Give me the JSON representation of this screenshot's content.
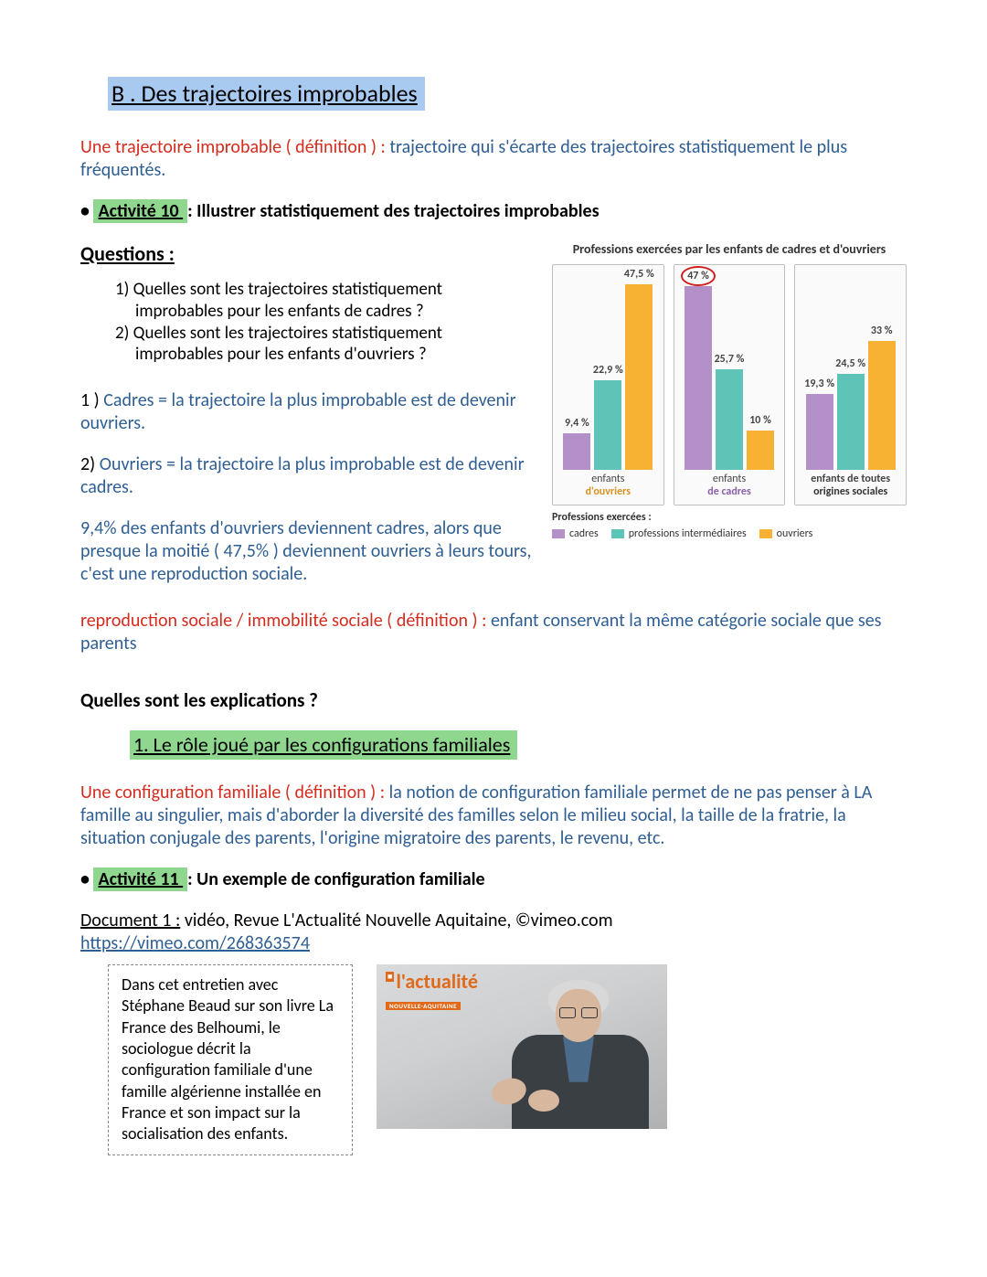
{
  "title": " B . Des trajectoires improbables ",
  "def1_label": "Une trajectoire improbable ( définition ) :",
  "def1_body": " trajectoire qui s'écarte des trajectoires statistiquement le plus fréquentés.",
  "act10_label": " Activité 10  ",
  "act10_body": ": Illustrer statistiquement des trajectoires improbables",
  "questions_h": "Questions  :",
  "q1": "1) Quelles sont les trajectoires statistiquement improbables pour les enfants de cadres ?",
  "q2": "2) Quelles sont les trajectoires statistiquement improbables pour les enfants d'ouvriers ?",
  "a1_pre": "1 ) ",
  "a1_body": "Cadres = la trajectoire la plus improbable est de devenir ouvriers.",
  "a2_pre": "2) ",
  "a2_body": "Ouvriers = la trajectoire la plus improbable est de devenir cadres.",
  "stat": "9,4% des enfants d'ouvriers deviennent cadres, alors que presque la moitié ( 47,5% ) deviennent ouvriers à leurs tours, c'est une reproduction sociale.",
  "def2_label": "reproduction sociale / immobilité sociale  ( définition ) :",
  "def2_body": " enfant conservant la même catégorie sociale que ses parents",
  "explain_h": "Quelles sont les explications ?",
  "sub_h": " 1. Le rôle joué par les configurations familiales ",
  "def3_label": "Une configuration familiale ( définition ) :",
  "def3_body": " la notion de configuration familiale permet de ne pas penser à LA famille au singulier, mais d'aborder la diversité des familles selon le milieu social, la taille de la fratrie, la situation conjugale des parents, l'origine migratoire des parents, le revenu, etc.",
  "act11_label": " Activité 11  ",
  "act11_body": ": Un exemple de configuration familiale",
  "doc1_pre": "Document 1 :",
  "doc1_body": " vidéo, Revue L'Actualité Nouvelle Aquitaine, ©vimeo.com",
  "doc1_link": "https://vimeo.com/268363574",
  "caption": "Dans cet entretien avec Stéphane Beaud sur son livre La France des Belhoumi, le sociologue décrit la configuration familiale d'une famille algérienne installée en France et son impact sur la socialisation des enfants.",
  "video_logo_main": "l'actualité",
  "video_logo_sub": "NOUVELLE-AQUITAINE",
  "chart": {
    "title": "Professions exercées par les enfants de cadres et d'ouvriers",
    "colors": {
      "cadres": "#b490c8",
      "inter": "#5fc4b8",
      "ouvriers": "#f7b233",
      "border": "#bfbfbf",
      "bg": "#fafafa"
    },
    "max": 50,
    "groups": [
      {
        "label_l1": "enfants",
        "label_l2": "d'ouvriers",
        "label_color": "#d89020",
        "bars": [
          {
            "series": "cadres",
            "value": 9.4,
            "label": "9,4 %"
          },
          {
            "series": "inter",
            "value": 22.9,
            "label": "22,9 %"
          },
          {
            "series": "ouvriers",
            "value": 47.5,
            "label": "47,5 %"
          }
        ]
      },
      {
        "label_l1": "enfants",
        "label_l2": "de cadres",
        "label_color": "#8a5fa8",
        "bars": [
          {
            "series": "cadres",
            "value": 47,
            "label": "47 %",
            "circled": true
          },
          {
            "series": "inter",
            "value": 25.7,
            "label": "25,7 %"
          },
          {
            "series": "ouvriers",
            "value": 10,
            "label": "10 %"
          }
        ]
      },
      {
        "label_l1": "enfants de toutes",
        "label_l2": "origines sociales",
        "label_color": "#333",
        "bold": true,
        "bars": [
          {
            "series": "cadres",
            "value": 19.3,
            "label": "19,3 %"
          },
          {
            "series": "inter",
            "value": 24.5,
            "label": "24,5 %"
          },
          {
            "series": "ouvriers",
            "value": 33,
            "label": "33 %"
          }
        ]
      }
    ],
    "legend_title": "Professions exercées :",
    "legend": [
      {
        "series": "cadres",
        "label": "cadres"
      },
      {
        "series": "inter",
        "label": "professions intermédiaires"
      },
      {
        "series": "ouvriers",
        "label": "ouvriers"
      }
    ]
  }
}
